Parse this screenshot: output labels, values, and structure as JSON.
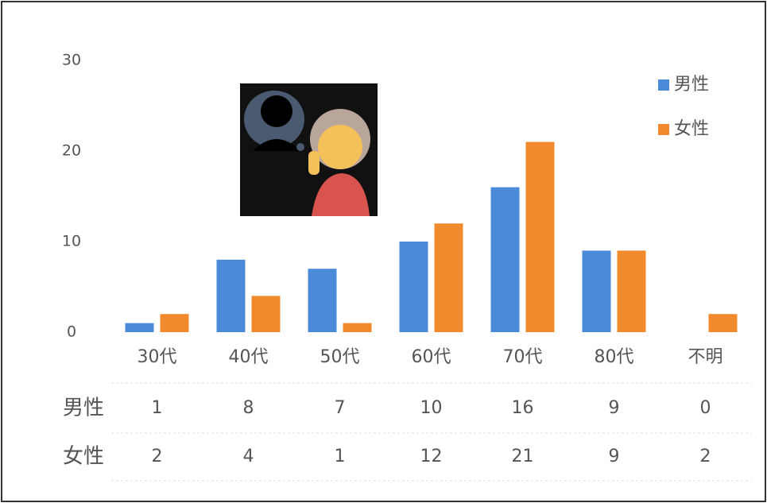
{
  "chart_data": {
    "type": "bar",
    "categories": [
      "30代",
      "40代",
      "50代",
      "60代",
      "70代",
      "80代",
      "不明"
    ],
    "series": [
      {
        "name": "男性",
        "color": "#4a8ad8",
        "values": [
          1,
          8,
          7,
          10,
          16,
          9,
          0
        ]
      },
      {
        "name": "女性",
        "color": "#f08a2c",
        "values": [
          2,
          4,
          1,
          12,
          21,
          9,
          2
        ]
      }
    ],
    "ylim": [
      0,
      30
    ],
    "yticks": [
      0,
      10,
      20,
      30
    ],
    "grid": false,
    "legend": "upper right"
  }
}
